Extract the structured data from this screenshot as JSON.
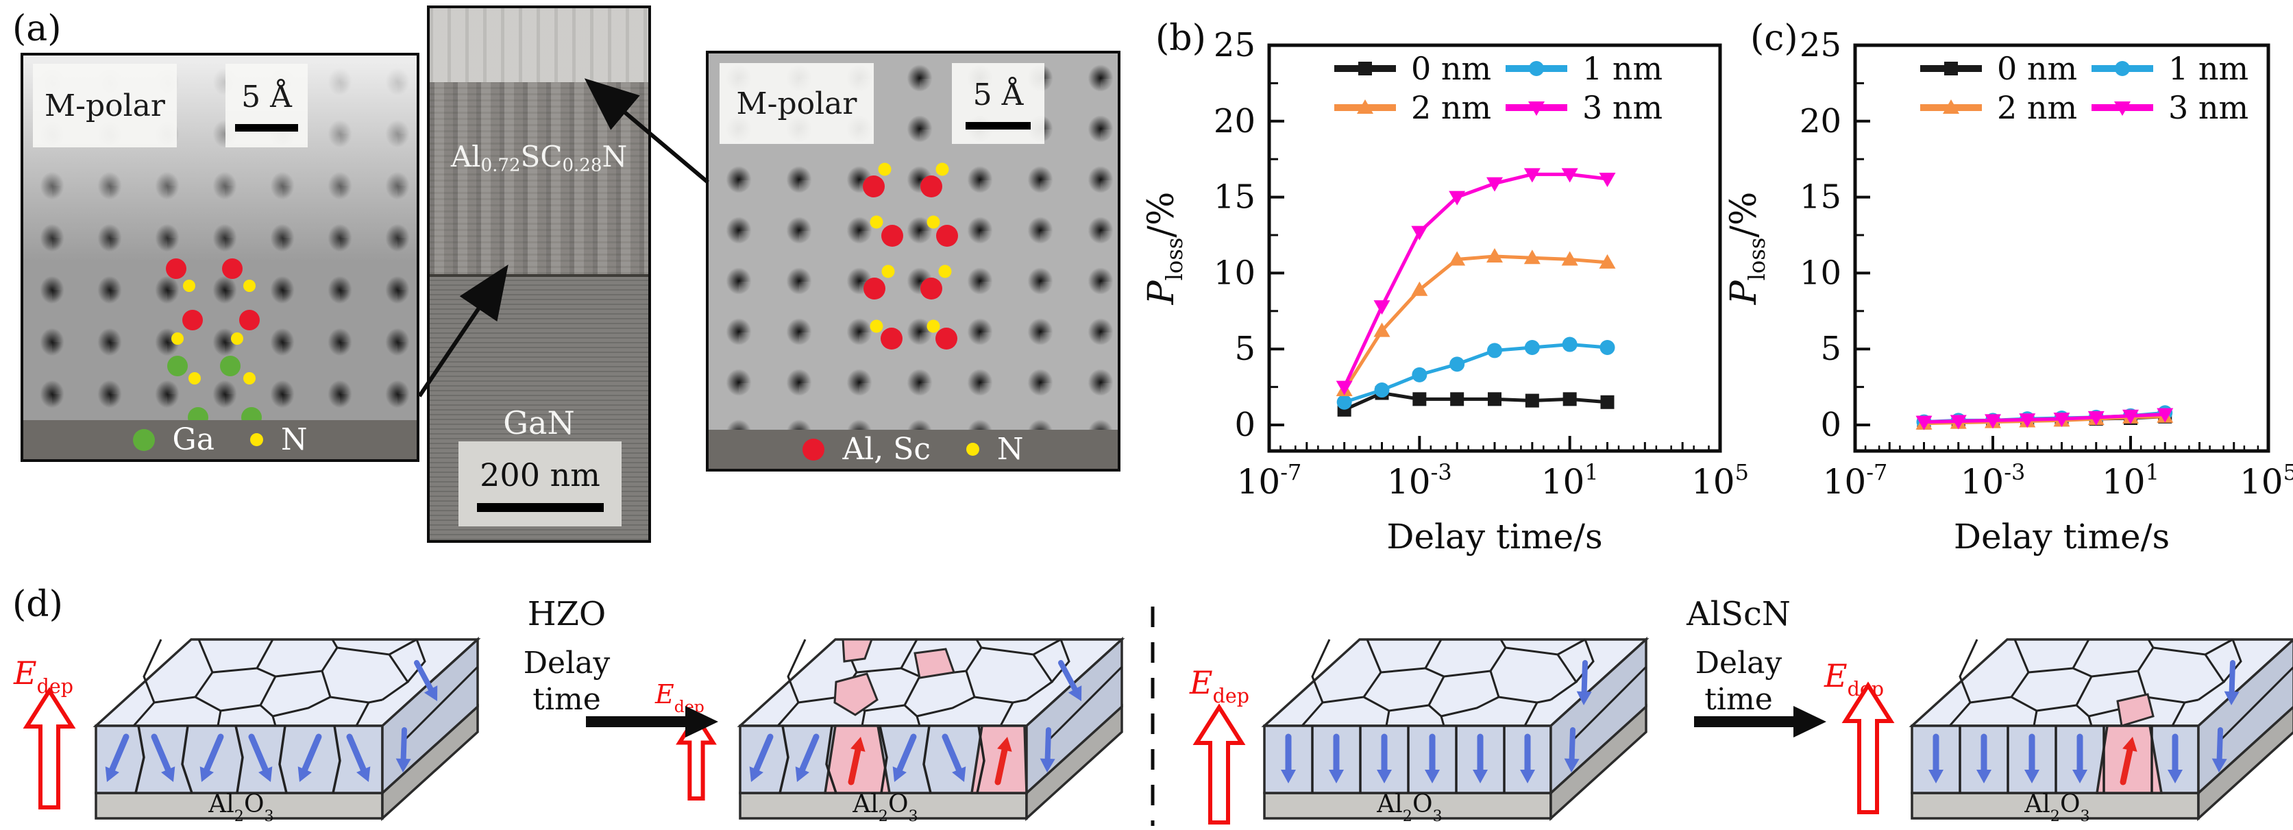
{
  "panel_a": {
    "label": "(a)",
    "left_image": {
      "polarity": "M-polar",
      "scale_label": "5 Å",
      "legend": [
        {
          "color": "#5fae3a",
          "label": "Ga"
        },
        {
          "color": "#ffe504",
          "label": "N"
        }
      ]
    },
    "tem": {
      "film_label": [
        [
          "t",
          "Al"
        ],
        [
          "s",
          "0.72"
        ],
        [
          "t",
          "SC"
        ],
        [
          "s",
          "0.28"
        ],
        [
          "t",
          "N"
        ]
      ],
      "substrate_label": "GaN",
      "scale_label": "200 nm"
    },
    "right_image": {
      "polarity": "M-polar",
      "scale_label": "5 Å",
      "legend": [
        {
          "color": "#e8192c",
          "label": "Al, Sc"
        },
        {
          "color": "#ffe504",
          "label": "N"
        }
      ]
    },
    "atom_colors": {
      "red": "#e8192c",
      "green": "#5fae3a",
      "yellow": "#ffe504"
    }
  },
  "chart_data": [
    {
      "id": "b",
      "label": "(b)",
      "type": "line",
      "xscale": "log",
      "xlabel": "Delay time/s",
      "ylabel_segments": [
        [
          "i",
          "P"
        ],
        [
          "s",
          "loss"
        ],
        [
          "t",
          "/%"
        ]
      ],
      "xlim_exp": [
        -7,
        5
      ],
      "xticks_exp": [
        -7,
        -3,
        1,
        5
      ],
      "ylim": [
        0,
        25
      ],
      "yticks": [
        0,
        5,
        10,
        15,
        20,
        25
      ],
      "grid": false,
      "legend_position": "top-inside",
      "x_exp": [
        -5,
        -4,
        -3,
        -2,
        -1,
        0,
        1,
        2
      ],
      "series": [
        {
          "name": "0 nm",
          "color": "#1a1a1a",
          "marker": "square",
          "values": [
            1.0,
            2.1,
            1.7,
            1.7,
            1.7,
            1.6,
            1.7,
            1.5
          ]
        },
        {
          "name": "1 nm",
          "color": "#29a7e0",
          "marker": "circle",
          "values": [
            1.5,
            2.3,
            3.3,
            4.0,
            4.9,
            5.1,
            5.3,
            5.1
          ]
        },
        {
          "name": "2 nm",
          "color": "#f59044",
          "marker": "triangle-up",
          "values": [
            2.3,
            6.2,
            8.9,
            10.9,
            11.1,
            11.0,
            10.9,
            10.7
          ]
        },
        {
          "name": "3 nm",
          "color": "#ff00d4",
          "marker": "triangle-down",
          "values": [
            2.5,
            7.8,
            12.7,
            15.0,
            15.9,
            16.5,
            16.5,
            16.2
          ]
        }
      ]
    },
    {
      "id": "c",
      "label": "(c)",
      "type": "line",
      "xscale": "log",
      "xlabel": "Delay time/s",
      "ylabel_segments": [
        [
          "i",
          "P"
        ],
        [
          "s",
          "loss"
        ],
        [
          "t",
          "/%"
        ]
      ],
      "xlim_exp": [
        -7,
        5
      ],
      "xticks_exp": [
        -7,
        -3,
        1,
        5
      ],
      "ylim": [
        0,
        25
      ],
      "yticks": [
        0,
        5,
        10,
        15,
        20,
        25
      ],
      "grid": false,
      "legend_position": "top-inside",
      "x_exp": [
        -5,
        -4,
        -3,
        -2,
        -1,
        0,
        1,
        2
      ],
      "series": [
        {
          "name": "0 nm",
          "color": "#1a1a1a",
          "marker": "square",
          "values": [
            0.15,
            0.2,
            0.25,
            0.3,
            0.35,
            0.4,
            0.45,
            0.55
          ]
        },
        {
          "name": "1 nm",
          "color": "#29a7e0",
          "marker": "circle",
          "values": [
            0.2,
            0.3,
            0.3,
            0.4,
            0.45,
            0.5,
            0.6,
            0.8
          ]
        },
        {
          "name": "2 nm",
          "color": "#f59044",
          "marker": "triangle-up",
          "values": [
            0.1,
            0.15,
            0.2,
            0.25,
            0.3,
            0.4,
            0.5,
            0.55
          ]
        },
        {
          "name": "3 nm",
          "color": "#ff00d4",
          "marker": "triangle-down",
          "values": [
            0.2,
            0.25,
            0.3,
            0.35,
            0.4,
            0.5,
            0.6,
            0.7
          ]
        }
      ]
    }
  ],
  "panel_d": {
    "label": "(d)",
    "field_label": [
      [
        "i",
        "E"
      ],
      [
        "s",
        "dep"
      ]
    ],
    "substrate_label": [
      [
        "t",
        "Al"
      ],
      [
        "s",
        "2"
      ],
      [
        "t",
        "O"
      ],
      [
        "s",
        "3"
      ]
    ],
    "transitions": [
      {
        "film": "HZO",
        "line1": "Delay",
        "line2": "time"
      },
      {
        "film": "AlScN",
        "line1": "Delay",
        "line2": "time"
      }
    ],
    "colors": {
      "field": "#f20d0d",
      "down_arrow": "#5571d8",
      "up_arrow": "#e8251f",
      "switched_grain": "#f2b9c4",
      "top_face": "#e9edf8",
      "front_face": "#ccd4e6",
      "side_face": "#bfc7d9",
      "substrate_front": "#c9c8c4",
      "substrate_side": "#aeadaa"
    },
    "blocks": [
      {
        "id": "hzo-before",
        "film": "HZO",
        "style": "poly",
        "cells": [
          "dl",
          "dr",
          "dl",
          "dr",
          "dl",
          "dr"
        ],
        "red": [],
        "side": [
          "dr",
          "d"
        ],
        "top_patches": false
      },
      {
        "id": "hzo-after",
        "film": "HZO",
        "style": "poly",
        "cells": [
          "dl",
          "dl",
          "up",
          "dl",
          "dr",
          "up"
        ],
        "red": [
          2,
          5
        ],
        "side": [
          "dr",
          "d"
        ],
        "top_patches": true
      },
      {
        "id": "alscn-before",
        "film": "AlScN",
        "style": "col",
        "cells": [
          "d",
          "d",
          "d",
          "d",
          "d",
          "d"
        ],
        "red": [],
        "side": [
          "d",
          "d"
        ],
        "top_patches": false
      },
      {
        "id": "alscn-after",
        "film": "AlScN",
        "style": "col",
        "cells": [
          "d",
          "d",
          "d",
          "d",
          "up",
          "d"
        ],
        "red": [
          4
        ],
        "side": [
          "d",
          "d"
        ],
        "top_patches": true
      }
    ]
  }
}
